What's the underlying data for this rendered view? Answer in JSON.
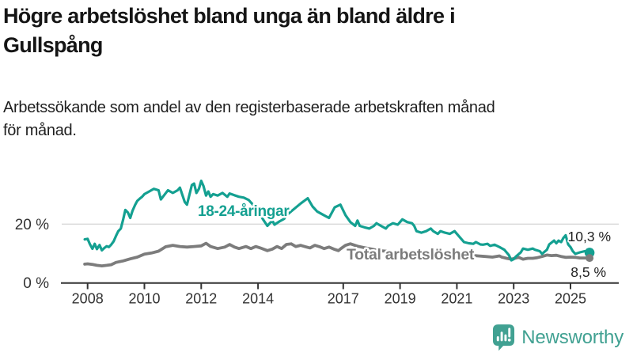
{
  "header": {
    "title_lines": [
      "Högre arbetslöshet bland unga än bland äldre i",
      "Gullspång"
    ],
    "subtitle_lines": [
      "Arbetssökande som andel av den registerbaserade arbetskraften månad",
      "för månad."
    ]
  },
  "chart_data": {
    "type": "line",
    "title": "Högre arbetslöshet bland unga än bland äldre i Gullspång",
    "subtitle": "Arbetssökande som andel av den registerbaserade arbetskraften månad för månad.",
    "xlabel": "",
    "ylabel": "",
    "unit": "%",
    "grid": "horizontal gridline at 20% only",
    "legend_position": "inline labels on lines",
    "x_axis": {
      "ticks": [
        2008,
        2010,
        2012,
        2014,
        2017,
        2019,
        2021,
        2023,
        2025
      ],
      "range_years": [
        2007.8,
        2026.7
      ]
    },
    "y_axis": {
      "ticks": [
        {
          "value": 0,
          "label": "0 %"
        },
        {
          "value": 20,
          "label": "20 %"
        }
      ],
      "range": [
        0,
        36
      ]
    },
    "axis_color": "#333333",
    "gridline_color": "#d9d9d9",
    "series": [
      {
        "name": "18-24-åringar",
        "color": "#14a091",
        "end_label": "10,3 %",
        "end_value": 10.3,
        "points": [
          [
            2007.9,
            14.8
          ],
          [
            2008.0,
            15.0
          ],
          [
            2008.08,
            13.2
          ],
          [
            2008.17,
            11.6
          ],
          [
            2008.25,
            13.3
          ],
          [
            2008.33,
            11.5
          ],
          [
            2008.42,
            12.9
          ],
          [
            2008.5,
            11.1
          ],
          [
            2008.58,
            11.8
          ],
          [
            2008.67,
            12.5
          ],
          [
            2008.75,
            12.2
          ],
          [
            2008.83,
            13.0
          ],
          [
            2008.92,
            14.2
          ],
          [
            2009.0,
            16.0
          ],
          [
            2009.08,
            17.6
          ],
          [
            2009.17,
            18.5
          ],
          [
            2009.25,
            21.5
          ],
          [
            2009.33,
            24.8
          ],
          [
            2009.42,
            23.9
          ],
          [
            2009.5,
            22.1
          ],
          [
            2009.58,
            24.5
          ],
          [
            2009.67,
            26.5
          ],
          [
            2009.75,
            27.9
          ],
          [
            2009.83,
            28.6
          ],
          [
            2009.92,
            29.3
          ],
          [
            2010.0,
            30.2
          ],
          [
            2010.17,
            31.1
          ],
          [
            2010.33,
            32.0
          ],
          [
            2010.5,
            31.5
          ],
          [
            2010.58,
            28.4
          ],
          [
            2010.75,
            30.5
          ],
          [
            2010.83,
            31.5
          ],
          [
            2011.0,
            30.6
          ],
          [
            2011.17,
            31.5
          ],
          [
            2011.25,
            32.4
          ],
          [
            2011.42,
            27.5
          ],
          [
            2011.5,
            26.6
          ],
          [
            2011.67,
            33.3
          ],
          [
            2011.75,
            33.8
          ],
          [
            2011.83,
            30.6
          ],
          [
            2011.92,
            32.0
          ],
          [
            2012.0,
            34.7
          ],
          [
            2012.08,
            32.9
          ],
          [
            2012.17,
            29.7
          ],
          [
            2012.25,
            31.1
          ],
          [
            2012.33,
            29.3
          ],
          [
            2012.42,
            30.2
          ],
          [
            2012.58,
            29.7
          ],
          [
            2012.75,
            30.6
          ],
          [
            2012.92,
            29.3
          ],
          [
            2013.0,
            30.4
          ],
          [
            2013.17,
            29.8
          ],
          [
            2013.33,
            29.3
          ],
          [
            2013.5,
            29.0
          ],
          [
            2013.67,
            28.2
          ],
          [
            2013.83,
            26.5
          ],
          [
            2014.0,
            24.5
          ],
          [
            2014.17,
            21.7
          ],
          [
            2014.33,
            19.4
          ],
          [
            2014.5,
            21.2
          ],
          [
            2014.58,
            19.8
          ],
          [
            2014.75,
            20.9
          ],
          [
            2014.92,
            21.8
          ],
          [
            2015.0,
            23.0
          ],
          [
            2015.25,
            25.0
          ],
          [
            2015.5,
            27.0
          ],
          [
            2015.75,
            28.8
          ],
          [
            2015.92,
            26.0
          ],
          [
            2016.08,
            24.3
          ],
          [
            2016.25,
            23.4
          ],
          [
            2016.5,
            22.1
          ],
          [
            2016.7,
            25.7
          ],
          [
            2016.9,
            26.6
          ],
          [
            2017.08,
            23.0
          ],
          [
            2017.25,
            20.7
          ],
          [
            2017.42,
            19.4
          ],
          [
            2017.5,
            21.2
          ],
          [
            2017.58,
            19.4
          ],
          [
            2017.75,
            18.9
          ],
          [
            2017.92,
            18.5
          ],
          [
            2018.08,
            19.4
          ],
          [
            2018.17,
            20.3
          ],
          [
            2018.33,
            19.4
          ],
          [
            2018.5,
            18.5
          ],
          [
            2018.58,
            19.4
          ],
          [
            2018.75,
            20.3
          ],
          [
            2018.92,
            19.8
          ],
          [
            2019.0,
            20.7
          ],
          [
            2019.08,
            21.6
          ],
          [
            2019.25,
            20.7
          ],
          [
            2019.42,
            20.3
          ],
          [
            2019.5,
            19.4
          ],
          [
            2019.58,
            17.6
          ],
          [
            2019.75,
            17.1
          ],
          [
            2019.92,
            17.6
          ],
          [
            2020.08,
            18.5
          ],
          [
            2020.17,
            17.6
          ],
          [
            2020.33,
            16.7
          ],
          [
            2020.42,
            17.6
          ],
          [
            2020.58,
            17.1
          ],
          [
            2020.75,
            16.7
          ],
          [
            2020.92,
            17.6
          ],
          [
            2021.0,
            16.7
          ],
          [
            2021.08,
            15.8
          ],
          [
            2021.25,
            13.9
          ],
          [
            2021.42,
            13.5
          ],
          [
            2021.58,
            13.3
          ],
          [
            2021.67,
            13.9
          ],
          [
            2021.83,
            13.1
          ],
          [
            2021.92,
            13.0
          ],
          [
            2022.08,
            13.3
          ],
          [
            2022.17,
            12.6
          ],
          [
            2022.33,
            13.0
          ],
          [
            2022.5,
            12.2
          ],
          [
            2022.67,
            11.3
          ],
          [
            2022.75,
            10.4
          ],
          [
            2022.83,
            9.5
          ],
          [
            2022.92,
            7.7
          ],
          [
            2023.0,
            8.1
          ],
          [
            2023.08,
            9.0
          ],
          [
            2023.25,
            10.4
          ],
          [
            2023.33,
            11.7
          ],
          [
            2023.5,
            11.3
          ],
          [
            2023.67,
            11.7
          ],
          [
            2023.75,
            11.3
          ],
          [
            2023.92,
            10.8
          ],
          [
            2024.0,
            9.9
          ],
          [
            2024.17,
            11.3
          ],
          [
            2024.25,
            13.1
          ],
          [
            2024.42,
            14.4
          ],
          [
            2024.5,
            13.5
          ],
          [
            2024.58,
            14.4
          ],
          [
            2024.67,
            13.9
          ],
          [
            2024.75,
            15.3
          ],
          [
            2024.83,
            16.2
          ],
          [
            2024.92,
            13.1
          ],
          [
            2025.0,
            12.2
          ],
          [
            2025.08,
            10.8
          ],
          [
            2025.17,
            9.9
          ],
          [
            2025.33,
            10.4
          ],
          [
            2025.5,
            10.8
          ],
          [
            2025.67,
            10.3
          ]
        ]
      },
      {
        "name": "Total arbetslöshet",
        "color": "#7c7c7c",
        "end_label": "8,5 %",
        "end_value": 8.5,
        "points": [
          [
            2007.9,
            6.4
          ],
          [
            2008.0,
            6.5
          ],
          [
            2008.17,
            6.3
          ],
          [
            2008.33,
            6.0
          ],
          [
            2008.5,
            5.8
          ],
          [
            2008.67,
            6.0
          ],
          [
            2008.83,
            6.2
          ],
          [
            2009.0,
            7.0
          ],
          [
            2009.25,
            7.5
          ],
          [
            2009.5,
            8.2
          ],
          [
            2009.75,
            8.8
          ],
          [
            2010.0,
            9.8
          ],
          [
            2010.25,
            10.2
          ],
          [
            2010.5,
            10.8
          ],
          [
            2010.75,
            12.3
          ],
          [
            2011.0,
            12.8
          ],
          [
            2011.25,
            12.4
          ],
          [
            2011.5,
            12.2
          ],
          [
            2011.75,
            12.4
          ],
          [
            2012.0,
            12.6
          ],
          [
            2012.17,
            13.5
          ],
          [
            2012.33,
            12.4
          ],
          [
            2012.58,
            11.7
          ],
          [
            2012.83,
            12.2
          ],
          [
            2013.0,
            13.1
          ],
          [
            2013.17,
            12.2
          ],
          [
            2013.33,
            11.7
          ],
          [
            2013.58,
            12.4
          ],
          [
            2013.75,
            11.7
          ],
          [
            2013.92,
            12.4
          ],
          [
            2014.08,
            11.9
          ],
          [
            2014.33,
            11.0
          ],
          [
            2014.5,
            11.5
          ],
          [
            2014.67,
            12.4
          ],
          [
            2014.83,
            11.7
          ],
          [
            2015.0,
            13.1
          ],
          [
            2015.17,
            13.3
          ],
          [
            2015.33,
            12.4
          ],
          [
            2015.5,
            12.8
          ],
          [
            2015.67,
            12.3
          ],
          [
            2015.83,
            11.9
          ],
          [
            2016.0,
            12.8
          ],
          [
            2016.17,
            12.3
          ],
          [
            2016.33,
            11.7
          ],
          [
            2016.5,
            12.2
          ],
          [
            2016.67,
            11.5
          ],
          [
            2016.83,
            11.0
          ],
          [
            2016.92,
            11.7
          ],
          [
            2017.08,
            12.8
          ],
          [
            2017.25,
            13.3
          ],
          [
            2017.5,
            12.5
          ],
          [
            2017.75,
            12.0
          ],
          [
            2018.0,
            11.5
          ],
          [
            2018.25,
            11.0
          ],
          [
            2018.5,
            10.8
          ],
          [
            2018.75,
            10.5
          ],
          [
            2019.0,
            10.2
          ],
          [
            2019.25,
            10.0
          ],
          [
            2019.5,
            9.8
          ],
          [
            2019.75,
            9.6
          ],
          [
            2020.0,
            9.8
          ],
          [
            2020.25,
            10.2
          ],
          [
            2020.5,
            10.4
          ],
          [
            2020.75,
            10.2
          ],
          [
            2021.0,
            10.0
          ],
          [
            2021.25,
            9.7
          ],
          [
            2021.5,
            9.4
          ],
          [
            2021.75,
            9.2
          ],
          [
            2022.0,
            9.0
          ],
          [
            2022.25,
            8.8
          ],
          [
            2022.5,
            9.2
          ],
          [
            2022.58,
            8.8
          ],
          [
            2022.75,
            8.4
          ],
          [
            2022.92,
            8.1
          ],
          [
            2023.08,
            8.5
          ],
          [
            2023.17,
            8.7
          ],
          [
            2023.33,
            8.1
          ],
          [
            2023.5,
            8.4
          ],
          [
            2023.67,
            8.4
          ],
          [
            2023.83,
            8.6
          ],
          [
            2024.0,
            9.0
          ],
          [
            2024.17,
            9.5
          ],
          [
            2024.33,
            9.3
          ],
          [
            2024.5,
            9.4
          ],
          [
            2024.67,
            9.0
          ],
          [
            2024.83,
            8.7
          ],
          [
            2025.0,
            8.8
          ],
          [
            2025.17,
            8.7
          ],
          [
            2025.33,
            8.5
          ],
          [
            2025.67,
            8.5
          ]
        ]
      }
    ]
  },
  "footer": {
    "brand": "Newsworthy",
    "brand_color": "#41a192",
    "logo_icon": "bar-chart-speech-bubble-icon"
  }
}
